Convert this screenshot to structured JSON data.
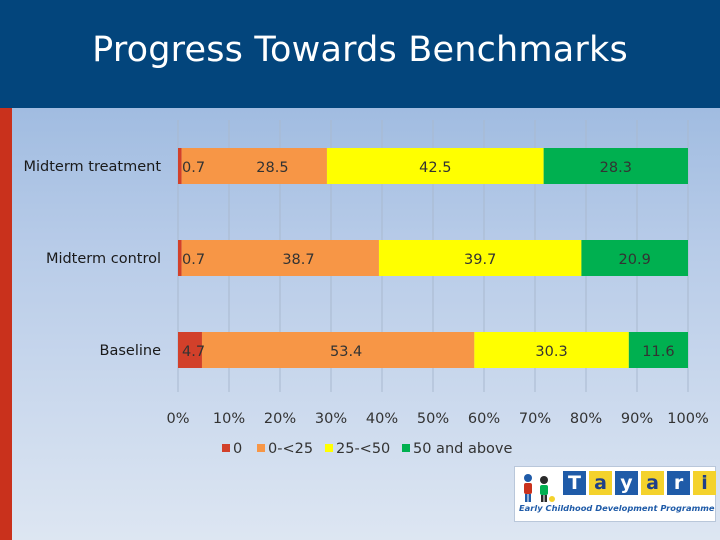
{
  "page": {
    "title": "Progress Towards Benchmarks"
  },
  "colors": {
    "header": "#03457c",
    "accent": "#c9311c"
  },
  "chart_data": {
    "type": "bar",
    "orientation": "horizontal",
    "stacked": true,
    "percent": true,
    "categories": [
      "Midterm treatment",
      "Midterm control",
      "Baseline"
    ],
    "series": [
      {
        "name": "0",
        "color": "#d2402a",
        "values": [
          0.7,
          0.7,
          4.7
        ]
      },
      {
        "name": "0-<25",
        "color": "#f79646",
        "values": [
          28.5,
          38.7,
          53.4
        ]
      },
      {
        "name": "25-<50",
        "color": "#ffff00",
        "values": [
          42.5,
          39.7,
          30.3
        ]
      },
      {
        "name": "50 and above",
        "color": "#00b050",
        "values": [
          28.3,
          20.9,
          11.6
        ]
      }
    ],
    "xlim": [
      0,
      100
    ],
    "xticks": [
      "0%",
      "10%",
      "20%",
      "30%",
      "40%",
      "50%",
      "60%",
      "70%",
      "80%",
      "90%",
      "100%"
    ],
    "legend": "bottom",
    "grid": true
  },
  "logo": {
    "letters": [
      "T",
      "a",
      "y",
      "a",
      "r",
      "i"
    ],
    "tagline": "Early Childhood Development Programme",
    "icon": "children-icon"
  }
}
